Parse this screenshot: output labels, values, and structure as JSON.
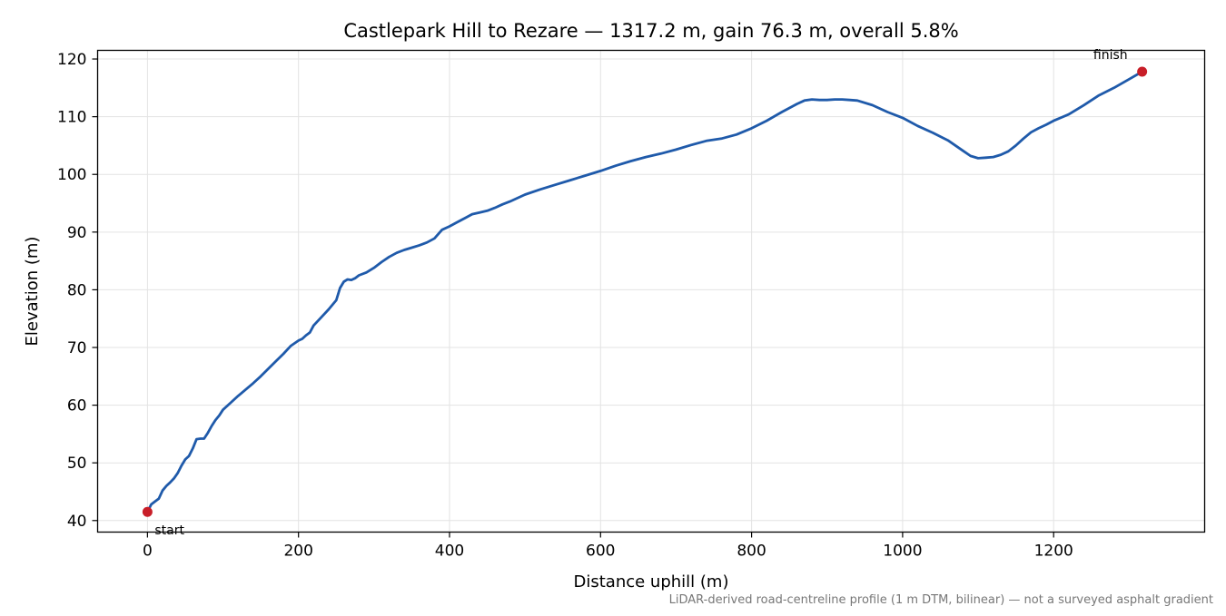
{
  "chart_data": {
    "type": "line",
    "title": "Castlepark Hill to Rezare — 1317.2 m, gain 76.3 m, overall 5.8%",
    "xlabel": "Distance uphill (m)",
    "ylabel": "Elevation (m)",
    "xlim": [
      -66,
      1400
    ],
    "ylim": [
      38,
      121.5
    ],
    "xticks": [
      0,
      200,
      400,
      600,
      800,
      1000,
      1200
    ],
    "yticks": [
      40,
      50,
      60,
      70,
      80,
      90,
      100,
      110,
      120
    ],
    "grid": true,
    "series": [
      {
        "color": "#1f5aaa",
        "x": [
          0,
          5,
          10,
          15,
          20,
          25,
          30,
          35,
          40,
          45,
          50,
          55,
          60,
          65,
          70,
          75,
          80,
          85,
          90,
          95,
          100,
          110,
          120,
          130,
          140,
          150,
          160,
          170,
          180,
          190,
          200,
          205,
          210,
          215,
          220,
          230,
          240,
          250,
          255,
          260,
          265,
          270,
          275,
          280,
          290,
          300,
          310,
          320,
          330,
          340,
          350,
          360,
          370,
          380,
          390,
          400,
          410,
          420,
          430,
          440,
          450,
          460,
          470,
          480,
          500,
          520,
          540,
          560,
          580,
          600,
          620,
          640,
          660,
          680,
          700,
          720,
          740,
          760,
          780,
          800,
          820,
          840,
          860,
          870,
          880,
          890,
          900,
          910,
          920,
          930,
          940,
          960,
          980,
          1000,
          1020,
          1040,
          1060,
          1080,
          1090,
          1100,
          1110,
          1120,
          1130,
          1140,
          1150,
          1160,
          1170,
          1180,
          1190,
          1200,
          1220,
          1240,
          1260,
          1280,
          1300,
          1317.2
        ],
        "y": [
          41.5,
          42.8,
          43.3,
          43.8,
          45.2,
          46.0,
          46.6,
          47.3,
          48.2,
          49.5,
          50.6,
          51.2,
          52.5,
          54.1,
          54.2,
          54.2,
          55.2,
          56.4,
          57.4,
          58.2,
          59.2,
          60.4,
          61.6,
          62.7,
          63.8,
          65.0,
          66.3,
          67.6,
          68.9,
          70.3,
          71.2,
          71.5,
          72.1,
          72.6,
          73.8,
          75.2,
          76.6,
          78.2,
          80.3,
          81.4,
          81.8,
          81.7,
          82.0,
          82.5,
          83.0,
          83.8,
          84.8,
          85.7,
          86.4,
          86.9,
          87.3,
          87.7,
          88.2,
          88.9,
          90.4,
          91.0,
          91.7,
          92.4,
          93.1,
          93.4,
          93.7,
          94.2,
          94.8,
          95.3,
          96.5,
          97.4,
          98.2,
          99.0,
          99.8,
          100.6,
          101.5,
          102.3,
          103.0,
          103.6,
          104.3,
          105.1,
          105.8,
          106.2,
          106.9,
          108.0,
          109.3,
          110.8,
          112.2,
          112.8,
          113.0,
          112.9,
          112.9,
          113.0,
          113.0,
          112.9,
          112.8,
          112.0,
          110.8,
          109.8,
          108.4,
          107.2,
          105.9,
          104.1,
          103.2,
          102.8,
          102.9,
          103.0,
          103.4,
          104.0,
          105.0,
          106.2,
          107.3,
          108.0,
          108.6,
          109.3,
          110.4,
          112.0,
          113.7,
          115.0,
          116.5,
          117.8
        ]
      }
    ],
    "markers": [
      {
        "x": 0,
        "y": 41.5,
        "label": "start",
        "color": "#c81e28"
      },
      {
        "x": 1317.2,
        "y": 117.8,
        "label": "finish",
        "color": "#c81e28"
      }
    ],
    "footnote": "LiDAR-derived road-centreline profile (1 m DTM, bilinear) — not a surveyed asphalt gradient"
  }
}
